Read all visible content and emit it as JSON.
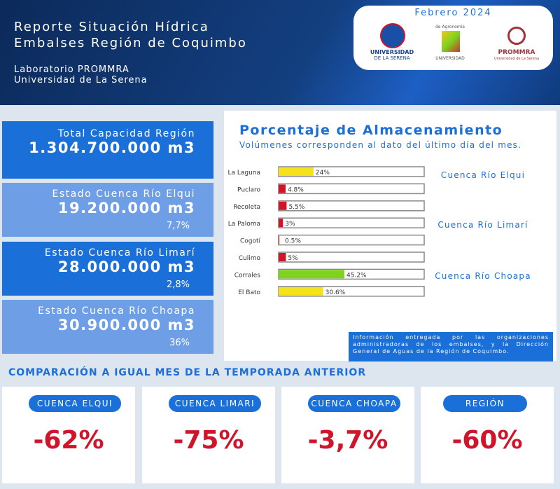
{
  "header": {
    "title_line1": "Reporte Situación Hídrica",
    "title_line2": "Embalses Región de Coquimbo",
    "org_line1": "Laboratorio PROMMRA",
    "org_line2": "Universidad de La Serena",
    "date": "Febrero 2024",
    "logo1_line1": "UNIVERSIDAD",
    "logo1_line2": "DE LA SERENA",
    "logo2_top": "de Agronomía",
    "logo2_bottom": "UNIVERSIDAD",
    "logo3_name": "PROMMRA",
    "logo3_sub": "Universidad de La Serena"
  },
  "summary": [
    {
      "label": "Total Capacidad Región",
      "value": "1.304.700.000 m3"
    },
    {
      "label": "Estado Cuenca Río Elqui",
      "value": "19.200.000 m3",
      "percent": "7,7%"
    },
    {
      "label": "Estado Cuenca Río Limarí",
      "value": "28.000.000 m3",
      "percent": "2,8%"
    },
    {
      "label": "Estado Cuenca Río Choapa",
      "value": "30.900.000 m3",
      "percent": "36%"
    }
  ],
  "chart_data": {
    "type": "bar",
    "orientation": "horizontal",
    "title": "Porcentaje de Almacenamiento",
    "subtitle": "Volúmenes corresponden al dato del último día del mes.",
    "categories": [
      "La Laguna",
      "Puclaro",
      "Recoleta",
      "La Paloma",
      "Cogotí",
      "Culimo",
      "Corrales",
      "El Bato"
    ],
    "values": [
      24,
      4.8,
      5.5,
      3,
      0.5,
      5,
      45.2,
      30.6
    ],
    "value_labels": [
      "24%",
      "4.8%",
      "5.5%",
      "3%",
      "0.5%",
      "5%",
      "45.2%",
      "30.6%"
    ],
    "colors": [
      "#f5e21c",
      "#d0152b",
      "#d0152b",
      "#d0152b",
      "#d0152b",
      "#d0152b",
      "#7ed321",
      "#f5e21c"
    ],
    "xlim": [
      0,
      100
    ],
    "groups": [
      "Cuenca Río Elqui",
      "Cuenca Río Limarí",
      "Cuenca Río Choapa"
    ]
  },
  "note": "Información entregada por las organizaciones administradoras de los embalses, y la Dirección General de Aguas de la Región de Coquimbo.",
  "comparison": {
    "title": "COMPARACIÓN A IGUAL MES DE LA TEMPORADA ANTERIOR",
    "cards": [
      {
        "label": "CUENCA ELQUI",
        "value": "-62%"
      },
      {
        "label": "CUENCA LIMARI",
        "value": "-75%"
      },
      {
        "label": "CUENCA CHOAPA",
        "value": "-3,7%"
      },
      {
        "label": "REGIÓN",
        "value": "-60%"
      }
    ]
  }
}
